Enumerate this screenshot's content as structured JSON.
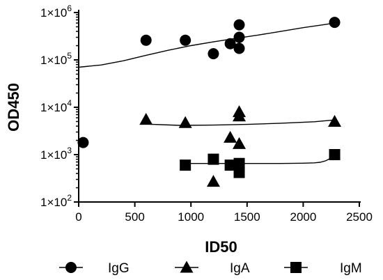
{
  "chart_data": {
    "type": "scatter",
    "title": "",
    "xlabel": "ID50",
    "ylabel": "OD450",
    "xlim": [
      0,
      2500
    ],
    "ylim": [
      100,
      1000000
    ],
    "x_scale": "linear",
    "y_scale": "log",
    "x_ticks": [
      0,
      500,
      1000,
      1500,
      2000,
      2500
    ],
    "x_tick_labels": [
      "0",
      "500",
      "1000",
      "1500",
      "2000",
      "2500"
    ],
    "y_ticks": [
      100,
      1000,
      10000,
      100000,
      1000000
    ],
    "y_tick_labels": [
      {
        "base": "1×10",
        "exp": "2"
      },
      {
        "base": "1×10",
        "exp": "3"
      },
      {
        "base": "1×10",
        "exp": "4"
      },
      {
        "base": "1×10",
        "exp": "5"
      },
      {
        "base": "1×10",
        "exp": "6"
      }
    ],
    "legend_position": "bottom",
    "series": [
      {
        "name": "IgG",
        "marker": "circle",
        "color": "#000000",
        "points": [
          [
            40,
            1800
          ],
          [
            600,
            260000
          ],
          [
            950,
            260000
          ],
          [
            1200,
            135000
          ],
          [
            1350,
            220000
          ],
          [
            1430,
            550000
          ],
          [
            1430,
            300000
          ],
          [
            1430,
            175000
          ],
          [
            2280,
            620000
          ]
        ],
        "fit_curve": [
          [
            0,
            70000
          ],
          [
            200,
            78000
          ],
          [
            400,
            96000
          ],
          [
            600,
            125000
          ],
          [
            800,
            160000
          ],
          [
            1000,
            200000
          ],
          [
            1200,
            240000
          ],
          [
            1400,
            285000
          ],
          [
            1600,
            335000
          ],
          [
            1800,
            400000
          ],
          [
            2000,
            480000
          ],
          [
            2200,
            560000
          ],
          [
            2280,
            600000
          ]
        ]
      },
      {
        "name": "IgA",
        "marker": "triangle",
        "color": "#000000",
        "points": [
          [
            600,
            5500
          ],
          [
            950,
            4700
          ],
          [
            1200,
            270
          ],
          [
            1350,
            2300
          ],
          [
            1430,
            8000
          ],
          [
            1430,
            6500
          ],
          [
            1430,
            1700
          ],
          [
            2280,
            5000
          ]
        ],
        "fit_curve": [
          [
            600,
            4400
          ],
          [
            900,
            4150
          ],
          [
            1200,
            4200
          ],
          [
            1500,
            4350
          ],
          [
            1800,
            4600
          ],
          [
            2100,
            4950
          ],
          [
            2280,
            5400
          ]
        ]
      },
      {
        "name": "IgM",
        "marker": "square",
        "color": "#000000",
        "points": [
          [
            950,
            600
          ],
          [
            1200,
            800
          ],
          [
            1350,
            600
          ],
          [
            1430,
            600
          ],
          [
            1430,
            650
          ],
          [
            1430,
            420
          ],
          [
            2280,
            1000
          ]
        ],
        "fit_curve": [
          [
            950,
            650
          ],
          [
            1200,
            650
          ],
          [
            1500,
            650
          ],
          [
            1800,
            650
          ],
          [
            2000,
            660
          ],
          [
            2100,
            670
          ],
          [
            2150,
            690
          ],
          [
            2200,
            740
          ],
          [
            2250,
            850
          ],
          [
            2280,
            1000
          ]
        ]
      }
    ]
  }
}
